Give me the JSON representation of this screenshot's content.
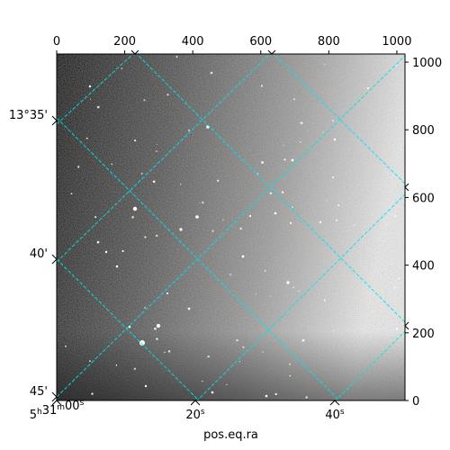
{
  "chart_data": {
    "type": "heatmap",
    "title": "",
    "xlabel": "pos.eq.ra",
    "ylabel": "",
    "colormap": "grayscale",
    "pixel_axes": {
      "xlim": [
        0,
        1024
      ],
      "ylim": [
        0,
        1024
      ],
      "xticks": [
        0,
        200,
        400,
        600,
        800,
        1000
      ],
      "yticks": [
        0,
        200,
        400,
        600,
        800,
        1000
      ]
    },
    "world_axes": {
      "ra_ticks": [
        {
          "h": "5",
          "m": "31",
          "s": "00",
          "label": "5h31m00s"
        },
        {
          "s": "20",
          "label": "20s"
        },
        {
          "s": "40",
          "label": "40s"
        }
      ],
      "dec_ticks": [
        "13°35'",
        "40'",
        "45'"
      ],
      "grid": true,
      "grid_color": "#00e5e5"
    }
  }
}
